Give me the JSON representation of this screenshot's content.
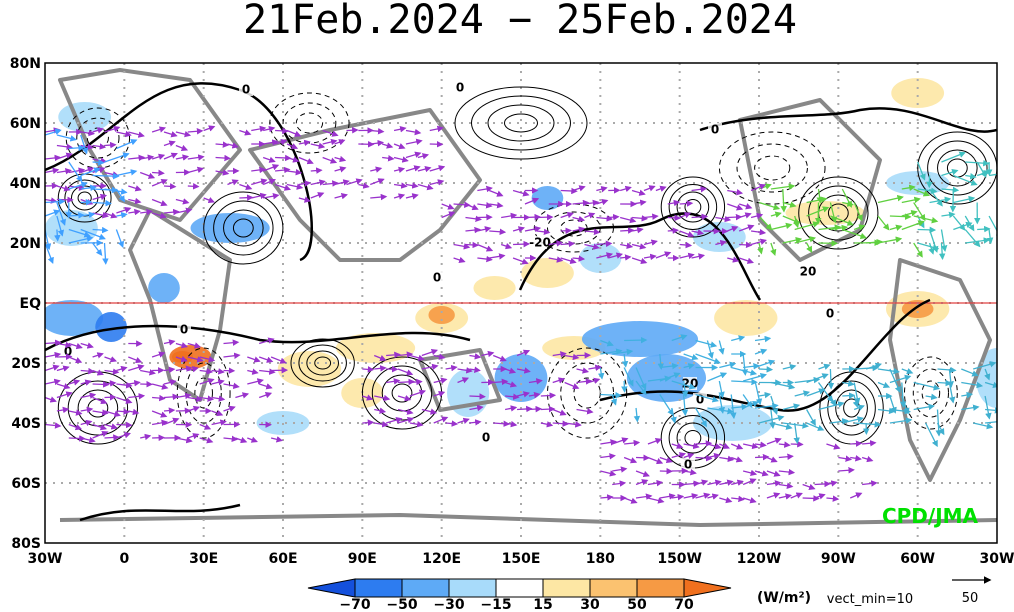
{
  "title": "21Feb.2024 − 25Feb.2024",
  "y_axis_labels": [
    "80N",
    "60N",
    "40N",
    "20N",
    "EQ",
    "20S",
    "40S",
    "60S",
    "80S"
  ],
  "x_axis_labels": [
    "30W",
    "0",
    "30E",
    "60E",
    "90E",
    "120E",
    "150E",
    "180",
    "150W",
    "120W",
    "90W",
    "60W",
    "30W"
  ],
  "colorbar": {
    "labels": [
      "−70",
      "−50",
      "−30",
      "−15",
      "15",
      "30",
      "50",
      "70"
    ],
    "colors": [
      "#1450dc",
      "#2d7cf0",
      "#5eaaf6",
      "#a8dbfa",
      "#ffffff",
      "#fde7a4",
      "#fbc270",
      "#f69a44",
      "#f0701e"
    ]
  },
  "units": "(W/m²)",
  "vector_note": "vect_min=10",
  "reference_vector": "50",
  "credit": "CPD/JMA",
  "contour_labels": [
    "0",
    "0",
    "0",
    "0",
    "0",
    "0",
    "0",
    "0",
    "0",
    "-20",
    "20",
    "20",
    "0"
  ]
}
